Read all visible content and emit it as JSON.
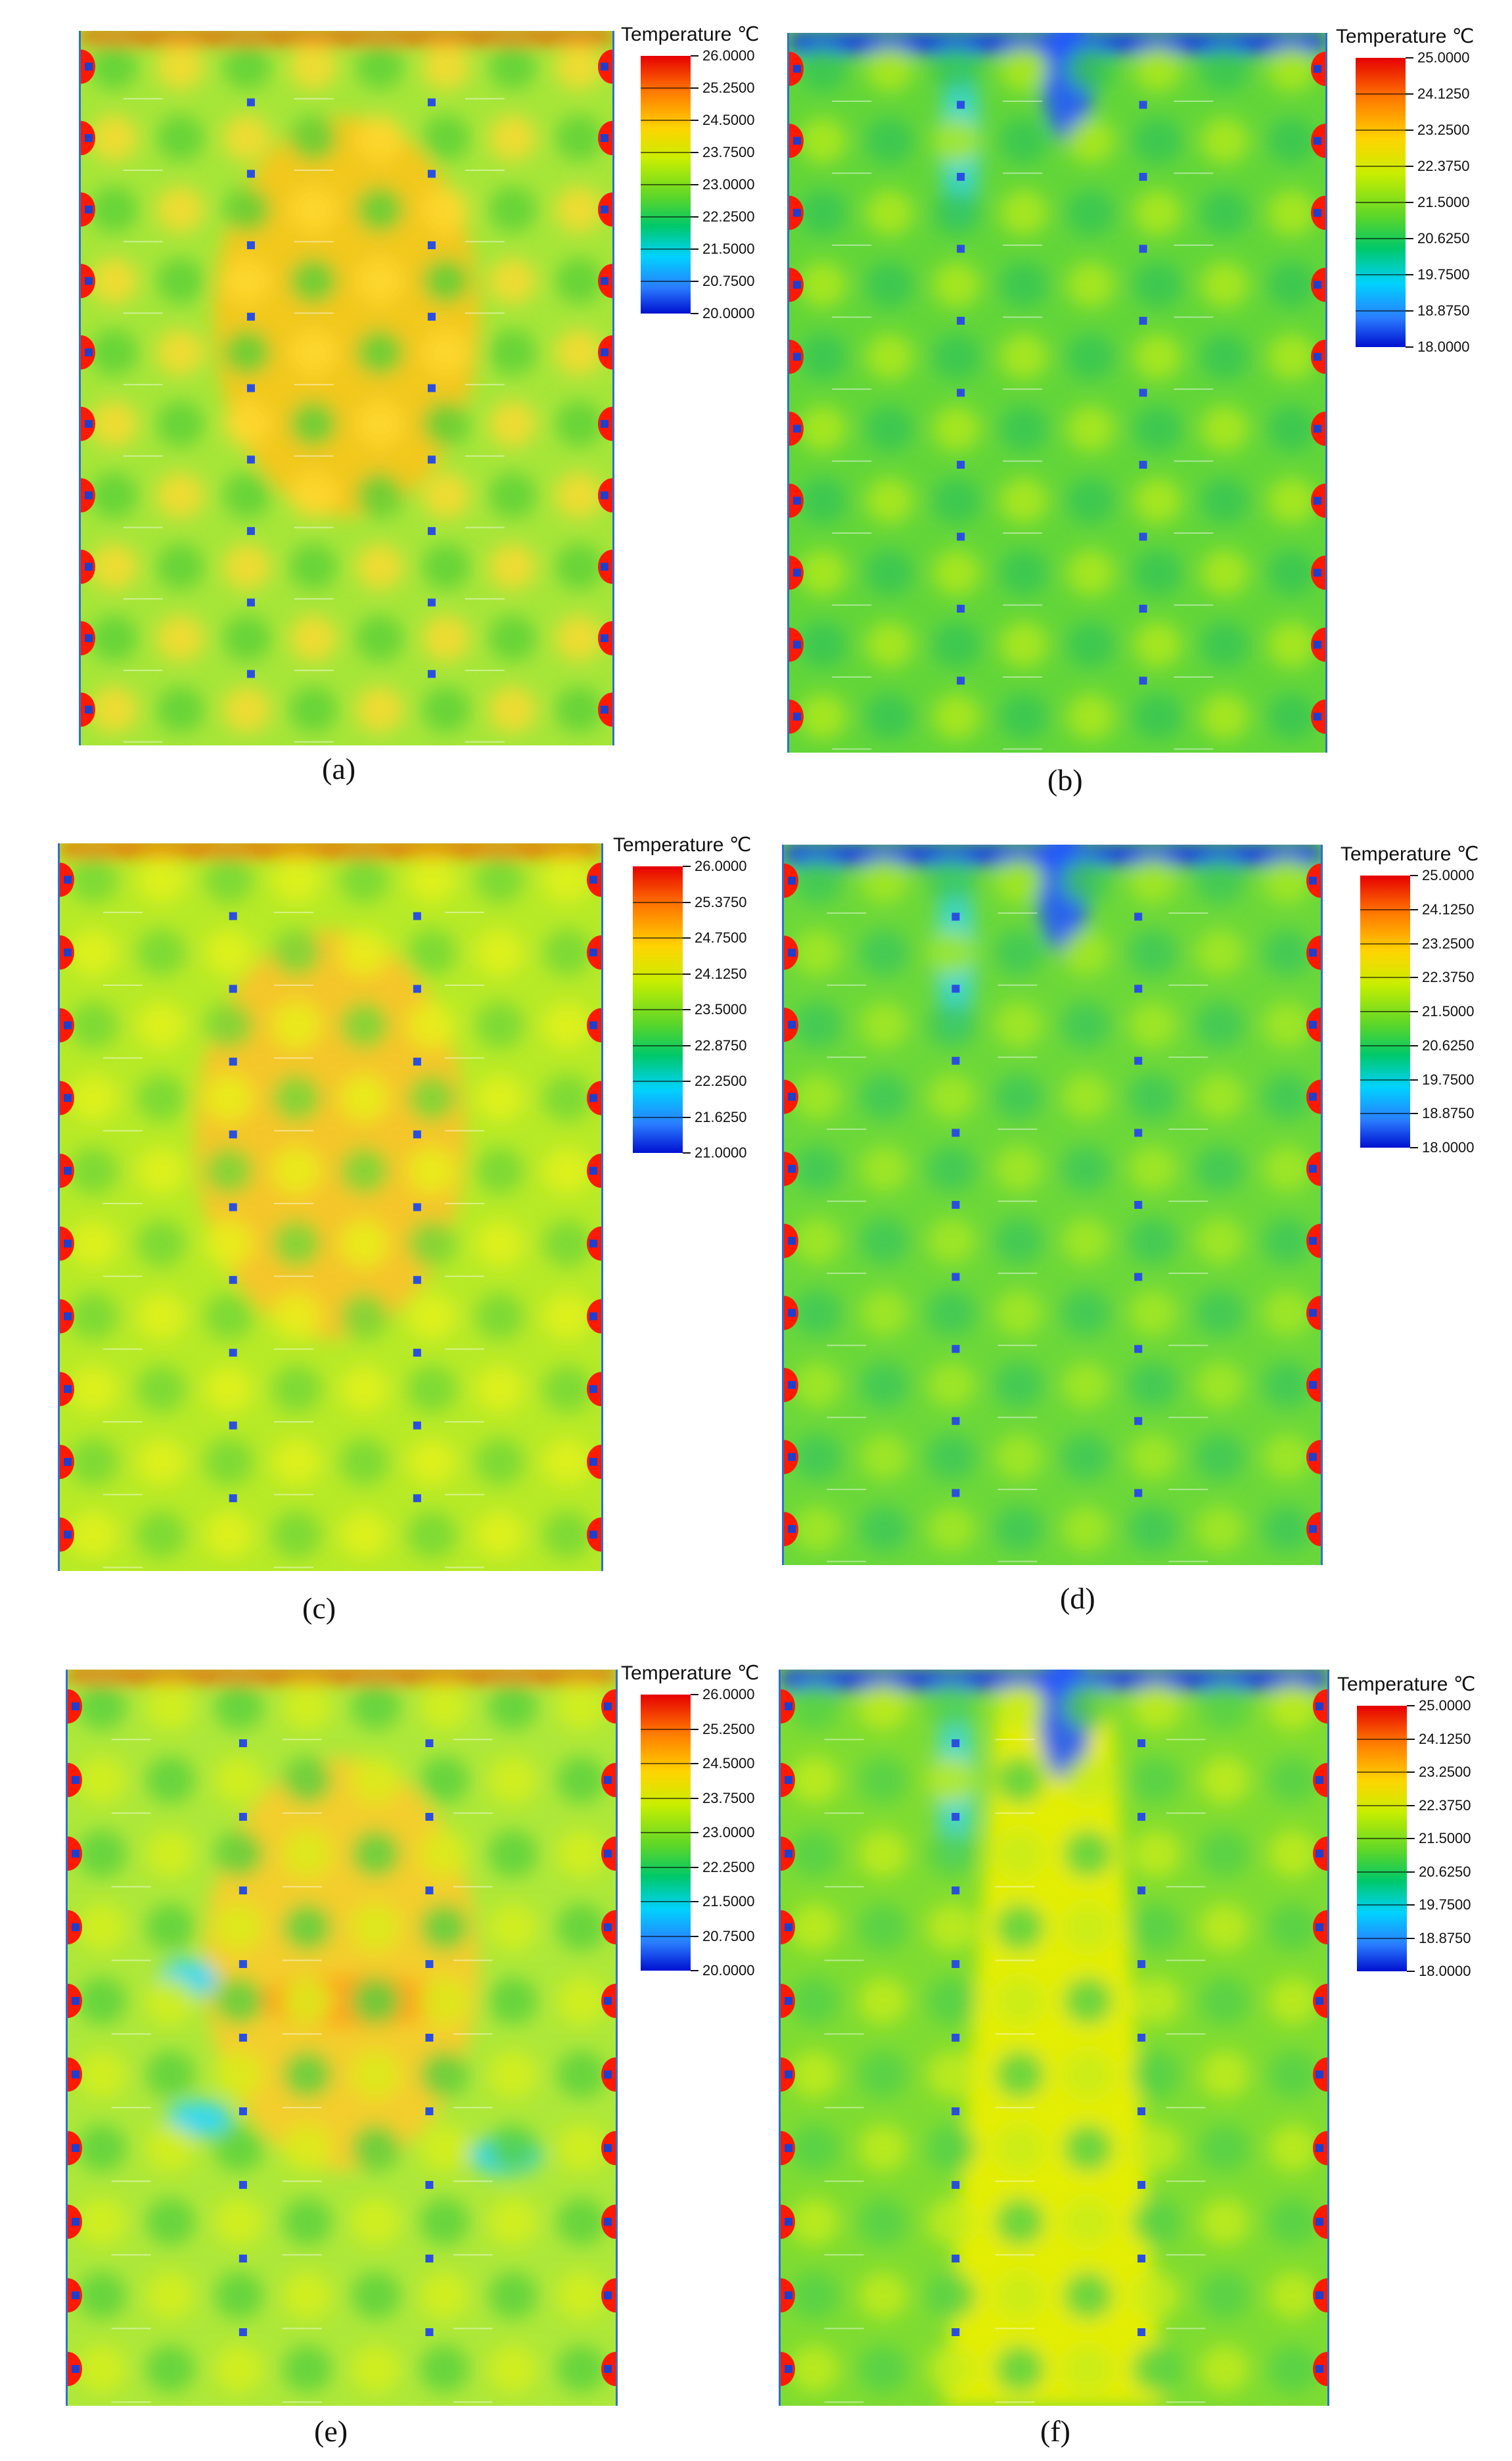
{
  "legend_title": "Temperature ℃",
  "colormap": [
    "#0010d0",
    "#2a7cff",
    "#00d2ff",
    "#00c86a",
    "#5ad62a",
    "#c8ee00",
    "#ffd400",
    "#ff7a00",
    "#e60000"
  ],
  "panels": [
    {
      "caption": "(a)",
      "legend_ticks": [
        "26.0000",
        "25.2500",
        "24.5000",
        "23.7500",
        "23.0000",
        "22.2500",
        "21.5000",
        "20.7500",
        "20.0000"
      ]
    },
    {
      "caption": "(b)",
      "legend_ticks": [
        "25.0000",
        "24.1250",
        "23.2500",
        "22.3750",
        "21.5000",
        "20.6250",
        "19.7500",
        "18.8750",
        "18.0000"
      ]
    },
    {
      "caption": "(c)",
      "legend_ticks": [
        "26.0000",
        "25.3750",
        "24.7500",
        "24.1250",
        "23.5000",
        "22.8750",
        "22.2500",
        "21.6250",
        "21.0000"
      ]
    },
    {
      "caption": "(d)",
      "legend_ticks": [
        "25.0000",
        "24.1250",
        "23.2500",
        "22.3750",
        "21.5000",
        "20.6250",
        "19.7500",
        "18.8750",
        "18.0000"
      ]
    },
    {
      "caption": "(e)",
      "legend_ticks": [
        "26.0000",
        "25.2500",
        "24.5000",
        "23.7500",
        "23.0000",
        "22.2500",
        "21.5000",
        "20.7500",
        "20.0000"
      ]
    },
    {
      "caption": "(f)",
      "legend_ticks": [
        "25.0000",
        "24.1250",
        "23.2500",
        "22.3750",
        "21.5000",
        "20.6250",
        "19.7500",
        "18.8750",
        "18.0000"
      ]
    }
  ]
}
